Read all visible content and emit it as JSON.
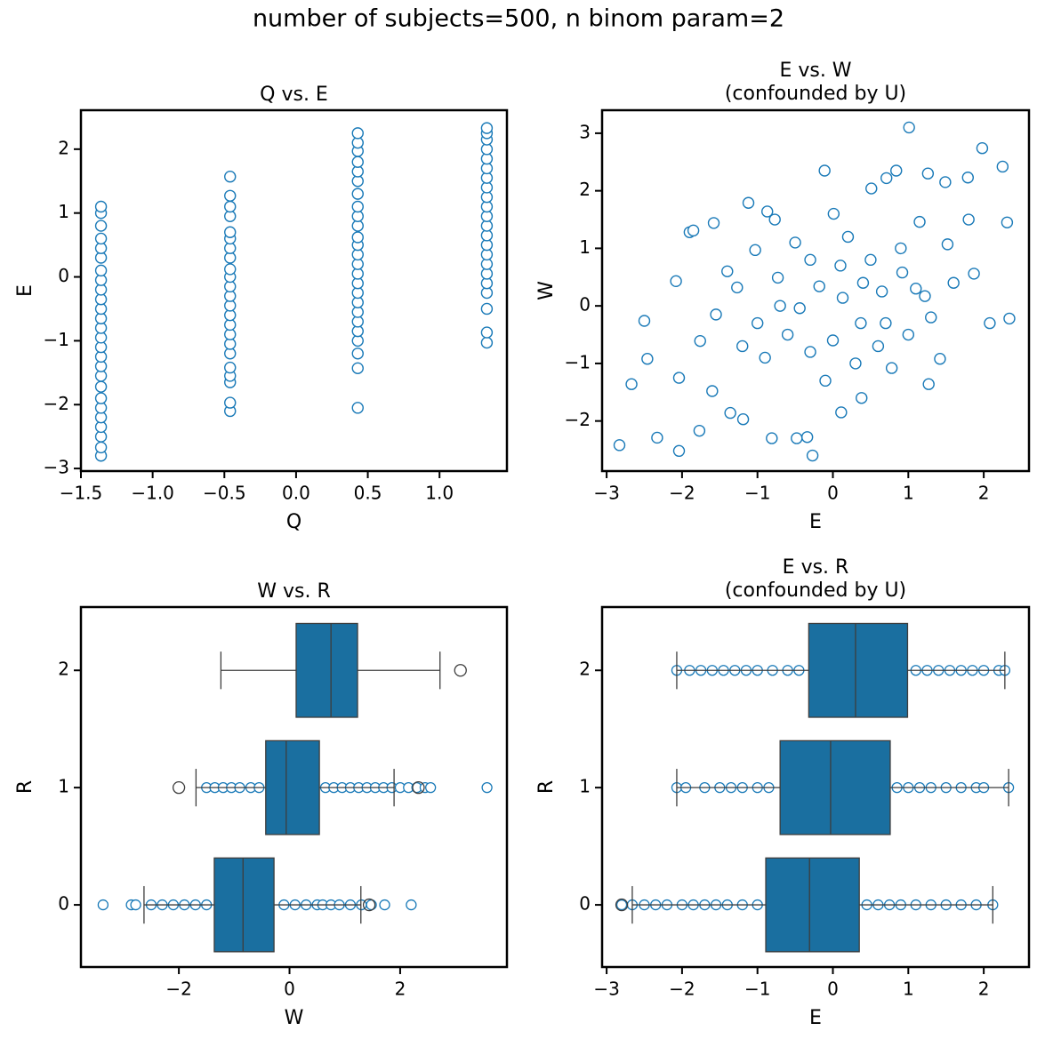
{
  "title": "number of subjects=500, n binom param=2",
  "chart_data": [
    {
      "type": "scatter",
      "title": "Q vs. E",
      "xlabel": "Q",
      "ylabel": "E",
      "color": "#1a7ab8",
      "x": [
        -1.36,
        -1.36,
        -1.36,
        -1.36,
        -1.36,
        -1.36,
        -1.36,
        -1.36,
        -1.36,
        -1.36,
        -1.36,
        -1.36,
        -1.36,
        -1.36,
        -1.36,
        -1.36,
        -1.36,
        -1.36,
        -1.36,
        -1.36,
        -1.36,
        -1.36,
        -1.36,
        -1.36,
        -1.36,
        -1.36,
        -0.46,
        -0.46,
        -0.46,
        -0.46,
        -0.46,
        -0.46,
        -0.46,
        -0.46,
        -0.46,
        -0.46,
        -0.46,
        -0.46,
        -0.46,
        -0.46,
        -0.46,
        -0.46,
        -0.46,
        -0.46,
        -0.46,
        -0.46,
        -0.46,
        -0.46,
        -0.46,
        0.43,
        0.43,
        0.43,
        0.43,
        0.43,
        0.43,
        0.43,
        0.43,
        0.43,
        0.43,
        0.43,
        0.43,
        0.43,
        0.43,
        0.43,
        0.43,
        0.43,
        0.43,
        0.43,
        0.43,
        0.43,
        0.43,
        0.43,
        0.43,
        0.43,
        1.33,
        1.33,
        1.33,
        1.33,
        1.33,
        1.33,
        1.33,
        1.33,
        1.33,
        1.33,
        1.33,
        1.33,
        1.33,
        1.33,
        1.33,
        1.33,
        1.33,
        1.33,
        1.33,
        1.33,
        1.33,
        1.33
      ],
      "y": [
        -2.8,
        -2.67,
        -2.5,
        -2.35,
        -2.2,
        -2.05,
        -1.9,
        -1.72,
        -1.55,
        -1.4,
        -1.25,
        -1.1,
        -0.95,
        -0.8,
        -0.65,
        -0.5,
        -0.35,
        -0.2,
        -0.05,
        0.1,
        0.3,
        0.45,
        0.6,
        0.8,
        1.0,
        1.1,
        -2.1,
        -1.97,
        -1.65,
        -1.55,
        -1.42,
        -1.2,
        -1.05,
        -0.9,
        -0.75,
        -0.6,
        -0.45,
        -0.3,
        -0.15,
        0,
        0.12,
        0.3,
        0.45,
        0.6,
        0.7,
        0.95,
        1.1,
        1.27,
        1.57,
        -2.05,
        -1.43,
        -1.2,
        -1.0,
        -0.85,
        -0.7,
        -0.55,
        -0.4,
        -0.25,
        -0.1,
        0.05,
        0.2,
        0.35,
        0.5,
        0.62,
        0.8,
        0.95,
        1.1,
        1.3,
        1.5,
        1.65,
        1.8,
        1.97,
        2.1,
        2.25,
        -1.03,
        -0.87,
        -0.5,
        -0.25,
        -0.1,
        0.05,
        0.2,
        0.35,
        0.5,
        0.65,
        0.8,
        0.95,
        1.1,
        1.25,
        1.4,
        1.55,
        1.7,
        1.85,
        2.0,
        2.15,
        2.25,
        2.33
      ],
      "xlim": [
        -1.5,
        1.47
      ],
      "ylim": [
        -3.04,
        2.61
      ],
      "xticks": [
        {
          "value": -1.5,
          "label": "−1.5"
        },
        {
          "value": -1.0,
          "label": "−1.0"
        },
        {
          "value": -0.5,
          "label": "−0.5"
        },
        {
          "value": 0,
          "label": "0.0"
        },
        0.5,
        {
          "value": 1,
          "label": "1.0"
        }
      ],
      "yticks": [
        {
          "value": -3,
          "label": "−3"
        },
        {
          "value": -2,
          "label": "−2"
        },
        {
          "value": -1,
          "label": "−1"
        },
        0,
        1,
        2
      ]
    },
    {
      "type": "scatter",
      "title": "E vs. W",
      "subtitle": "(confounded by U)",
      "xlabel": "E",
      "ylabel": "W",
      "color": "#1a7ab8",
      "x": [
        -2.83,
        -2.04,
        -2.33,
        -2.67,
        -2.46,
        -2.5,
        -2.08,
        -1.9,
        -1.85,
        -1.58,
        -1.12,
        -0.87,
        -0.77,
        -0.11,
        0.01,
        0.51,
        0.71,
        1.01,
        0.84,
        1.26,
        1.49,
        1.79,
        1.98,
        2.25,
        2.31,
        2.34,
        2.08,
        1.87,
        1.52,
        1.15,
        1.42,
        1.27,
        0.78,
        0.38,
        0.11,
        -0.27,
        -0.34,
        -0.48,
        -0.81,
        -1.19,
        -1.36,
        -1.6,
        -1.77,
        -2.04,
        -1.76,
        -1.55,
        -1.27,
        -1.03,
        -0.73,
        -0.44,
        -0.18,
        0.13,
        0.37,
        0.65,
        0.92,
        1.22,
        0.5,
        0.2,
        -0.3,
        -0.6,
        -0.9,
        -1.2,
        0.0,
        0.3,
        0.7,
        1.0,
        1.6,
        0.9,
        -0.5,
        -1.4,
        0.6,
        -0.1,
        1.8,
        0.4,
        -0.7,
        1.1,
        0.1,
        -1.0,
        -0.3,
        1.3
      ],
      "y": [
        -2.42,
        -2.52,
        -2.29,
        -1.36,
        -0.92,
        -0.26,
        0.43,
        1.28,
        1.31,
        1.44,
        1.79,
        1.64,
        1.5,
        2.35,
        1.6,
        2.04,
        2.22,
        3.1,
        2.35,
        2.3,
        2.15,
        2.23,
        2.74,
        2.42,
        1.45,
        -0.22,
        -0.3,
        0.56,
        1.07,
        1.46,
        -0.92,
        -1.36,
        -1.08,
        -1.6,
        -1.85,
        -2.6,
        -2.28,
        -2.3,
        -2.3,
        -1.97,
        -1.86,
        -1.48,
        -2.17,
        -1.25,
        -0.61,
        -0.15,
        0.32,
        0.97,
        0.49,
        -0.04,
        0.34,
        0.14,
        -0.3,
        0.25,
        0.58,
        0.17,
        0.8,
        1.2,
        0.8,
        -0.5,
        -0.9,
        -0.7,
        -0.6,
        -1.0,
        -0.3,
        -0.5,
        0.4,
        1.0,
        1.1,
        0.6,
        -0.7,
        -1.3,
        1.5,
        0.4,
        0.0,
        0.3,
        0.7,
        -0.3,
        -0.8,
        -0.2
      ],
      "xlim": [
        -3.06,
        2.6
      ],
      "ylim": [
        -2.87,
        3.4
      ],
      "xticks": [
        {
          "value": -3,
          "label": "−3"
        },
        {
          "value": -2,
          "label": "−2"
        },
        {
          "value": -1,
          "label": "−1"
        },
        0,
        1,
        2
      ],
      "yticks": [
        {
          "value": -2,
          "label": "−2"
        },
        {
          "value": -1,
          "label": "−1"
        },
        0,
        1,
        2,
        3
      ]
    },
    {
      "type": "box",
      "title": "W vs. R",
      "xlabel": "W",
      "ylabel": "R",
      "color": "#1a7ab8",
      "box_color": "#1a6fa0",
      "categories": [
        "0",
        "1",
        "2"
      ],
      "points": [
        [
          -3.37,
          -2.86,
          -2.78,
          -2.5,
          -2.3,
          -2.1,
          -1.9,
          -1.7,
          -1.5,
          -0.1,
          0.1,
          0.3,
          0.5,
          0.6,
          0.75,
          0.9,
          1.1,
          1.3,
          1.48,
          1.72,
          2.2
        ],
        [
          -1.5,
          -1.35,
          -1.2,
          -1.05,
          -0.9,
          -0.7,
          -0.55,
          0.65,
          0.8,
          0.95,
          1.1,
          1.25,
          1.4,
          1.55,
          1.7,
          1.85,
          2.0,
          2.15,
          2.3,
          2.45,
          2.55,
          3.57
        ],
        []
      ],
      "boxes": [
        {
          "whislo": -2.63,
          "q1": -1.36,
          "med": -0.84,
          "q3": -0.28,
          "whishi": 1.29,
          "fliers": [
            1.44
          ]
        },
        {
          "whislo": -1.69,
          "q1": -0.43,
          "med": -0.06,
          "q3": 0.54,
          "whishi": 1.89,
          "fliers": [
            -2.0,
            2.33
          ]
        },
        {
          "whislo": -1.24,
          "q1": 0.12,
          "med": 0.75,
          "q3": 1.23,
          "whishi": 2.72,
          "fliers": [
            3.09
          ]
        }
      ],
      "xlim": [
        -3.77,
        3.93
      ],
      "ylim": [
        -0.53,
        2.54
      ],
      "xticks": [
        {
          "value": -2,
          "label": "−2"
        },
        0,
        2
      ]
    },
    {
      "type": "box",
      "title": "E vs. R",
      "subtitle": "(confounded by U)",
      "xlabel": "E",
      "ylabel": "R",
      "color": "#1a7ab8",
      "box_color": "#1a6fa0",
      "categories": [
        "0",
        "1",
        "2"
      ],
      "points": [
        [
          -2.8,
          -2.66,
          -2.5,
          -2.35,
          -2.2,
          -2.0,
          -1.85,
          -1.7,
          -1.55,
          -1.4,
          -1.2,
          -1.0,
          0.45,
          0.6,
          0.75,
          0.9,
          1.1,
          1.3,
          1.5,
          1.7,
          1.9,
          2.12
        ],
        [
          -2.07,
          -1.95,
          -1.7,
          -1.5,
          -1.35,
          -1.2,
          -1.0,
          -0.85,
          0.85,
          1.0,
          1.15,
          1.3,
          1.5,
          1.7,
          1.9,
          2.0,
          2.33
        ],
        [
          -2.07,
          -1.9,
          -1.75,
          -1.6,
          -1.45,
          -1.3,
          -1.15,
          -1.0,
          -0.8,
          -0.6,
          -0.45,
          1.1,
          1.25,
          1.4,
          1.55,
          1.7,
          1.85,
          2.0,
          2.2,
          2.28
        ]
      ],
      "boxes": [
        {
          "whislo": -2.66,
          "q1": -0.89,
          "med": -0.31,
          "q3": 0.35,
          "whishi": 2.12,
          "fliers": [
            -2.8
          ]
        },
        {
          "whislo": -2.07,
          "q1": -0.7,
          "med": -0.03,
          "q3": 0.76,
          "whishi": 2.33,
          "fliers": []
        },
        {
          "whislo": -2.07,
          "q1": -0.32,
          "med": 0.3,
          "q3": 0.99,
          "whishi": 2.28,
          "fliers": []
        }
      ],
      "xlim": [
        -3.06,
        2.6
      ],
      "ylim": [
        -0.53,
        2.54
      ],
      "xticks": [
        {
          "value": -3,
          "label": "−3"
        },
        {
          "value": -2,
          "label": "−2"
        },
        {
          "value": -1,
          "label": "−1"
        },
        0,
        1,
        2
      ]
    }
  ]
}
